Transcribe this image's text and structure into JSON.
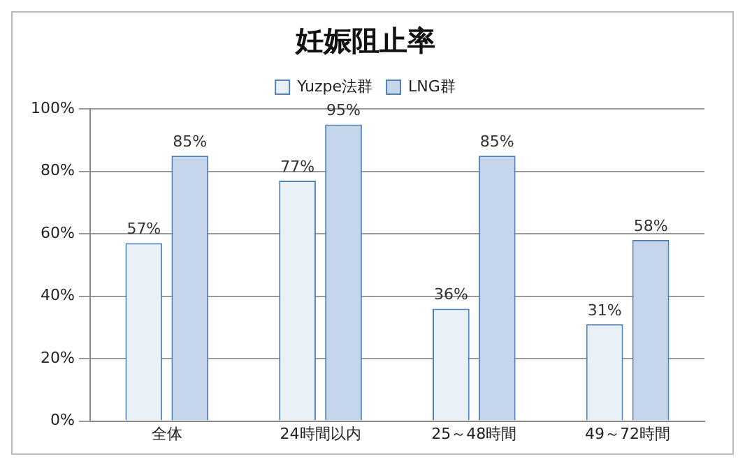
{
  "chart_data": {
    "type": "bar",
    "title": "妊娠阻止率",
    "categories": [
      "全体",
      "24時間以内",
      "25～48時間",
      "49～72時間"
    ],
    "series": [
      {
        "name": "Yuzpe法群",
        "color": "#eaf0f7",
        "values": [
          57,
          77,
          36,
          31
        ],
        "value_labels": [
          "57%",
          "77%",
          "36%",
          "31%"
        ]
      },
      {
        "name": "LNG群",
        "color": "#c6d6ea",
        "values": [
          85,
          95,
          85,
          58
        ],
        "value_labels": [
          "85%",
          "95%",
          "85%",
          "58%"
        ]
      }
    ],
    "ylim": [
      0,
      100
    ],
    "yticks": [
      {
        "value": 0,
        "label": "0%"
      },
      {
        "value": 20,
        "label": "20%"
      },
      {
        "value": 40,
        "label": "40%"
      },
      {
        "value": 60,
        "label": "60%"
      },
      {
        "value": 80,
        "label": "80%"
      },
      {
        "value": 100,
        "label": "100%"
      }
    ],
    "grid": "y",
    "legend": "top"
  }
}
